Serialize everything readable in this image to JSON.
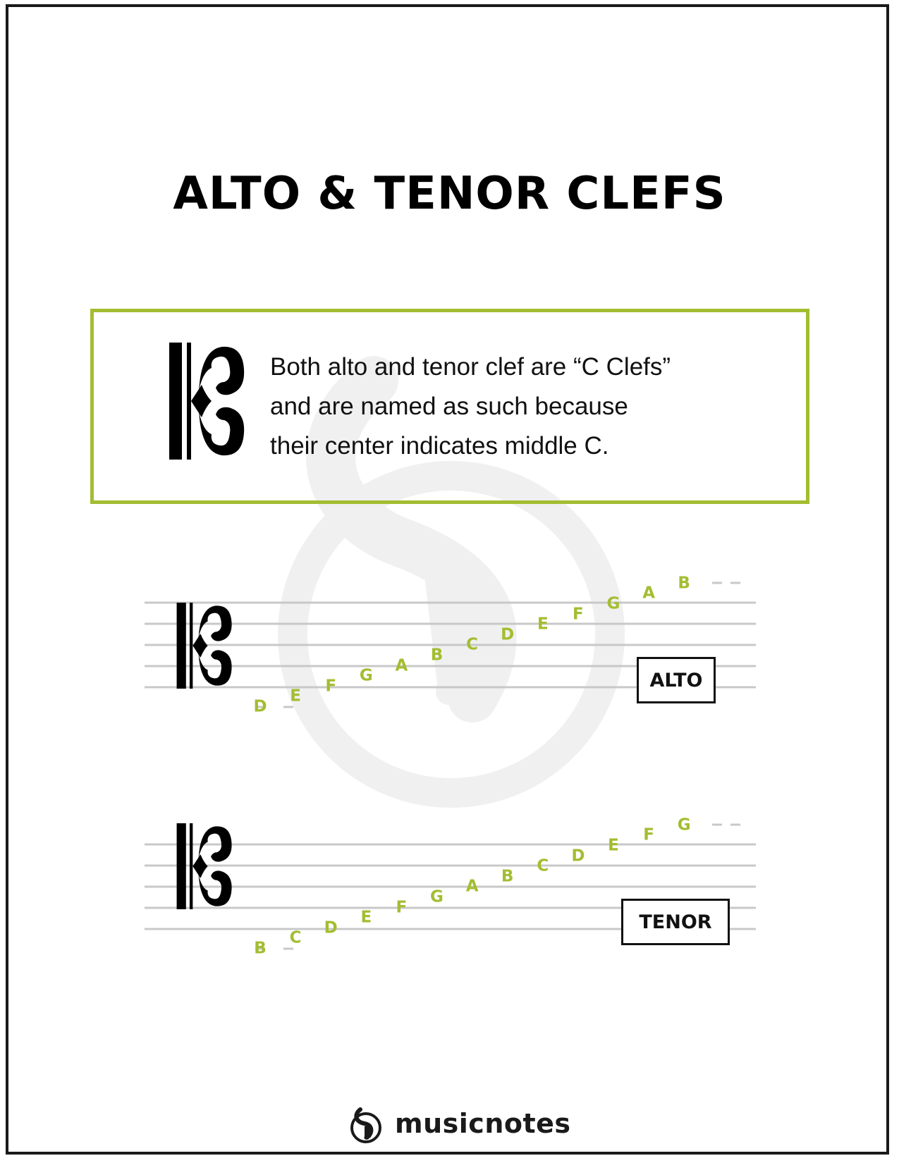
{
  "title": "ALTO & TENOR CLEFS",
  "colors": {
    "accent": "#a3bd31",
    "staff_line": "#c8c8c8",
    "text": "#111111"
  },
  "info": {
    "icon": "c-clef-icon",
    "lines": [
      "Both alto and tenor clef are “C Clefs”",
      "and are named as such because",
      "their center indicates middle C."
    ]
  },
  "staves": [
    {
      "label": "ALTO",
      "notes": [
        "D",
        "E",
        "F",
        "G",
        "A",
        "B",
        "C",
        "D",
        "E",
        "F",
        "G",
        "A",
        "B"
      ]
    },
    {
      "label": "TENOR",
      "notes": [
        "B",
        "C",
        "D",
        "E",
        "F",
        "G",
        "A",
        "B",
        "C",
        "D",
        "E",
        "F",
        "G"
      ]
    }
  ],
  "footer": {
    "brand": "musicnotes",
    "icon": "musicnotes-logo-icon"
  }
}
